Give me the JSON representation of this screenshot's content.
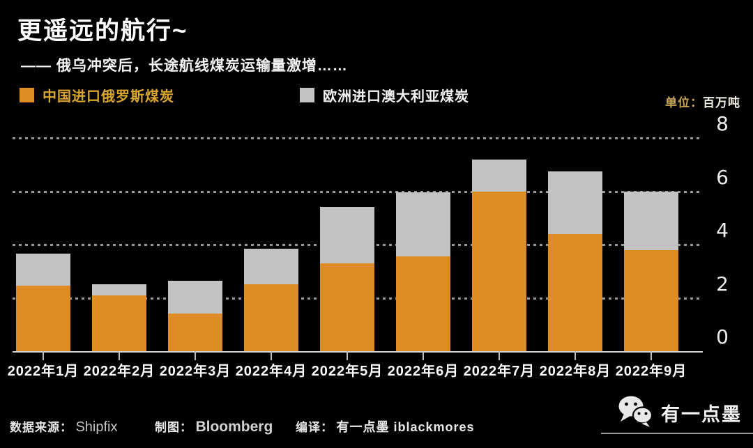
{
  "header": {
    "title": "更遥远的航行~",
    "subtitle": "—— 俄乌冲突后，长途航线煤炭运输量激增……"
  },
  "legend": {
    "items": [
      {
        "label": "中国进口俄罗斯煤炭",
        "swatch_color": "#de8d26",
        "label_color": "#d9a62e"
      },
      {
        "label": "欧洲进口澳大利亚煤炭",
        "swatch_color": "#c3c3c3",
        "label_color": "#f2f2f2"
      }
    ]
  },
  "unit": {
    "prefix": "单位：",
    "value": "百万吨"
  },
  "chart_data": {
    "type": "bar",
    "stacked": true,
    "title": "更遥远的航行~",
    "subtitle": "—— 俄乌冲突后，长途航线煤炭运输量激增……",
    "unit": "百万吨",
    "categories": [
      "2022年1月",
      "2022年2月",
      "2022年3月",
      "2022年4月",
      "2022年5月",
      "2022年6月",
      "2022年7月",
      "2022年8月",
      "2022年9月"
    ],
    "series": [
      {
        "name": "中国进口俄罗斯煤炭",
        "color": "#de8d26",
        "values": [
          2.45,
          2.1,
          1.4,
          2.5,
          3.3,
          3.55,
          6.0,
          4.4,
          3.8
        ]
      },
      {
        "name": "欧洲进口澳大利亚煤炭",
        "color": "#c3c3c3",
        "values": [
          1.2,
          0.4,
          1.25,
          1.35,
          2.1,
          2.4,
          1.2,
          2.35,
          2.2
        ]
      }
    ],
    "ylim": [
      0,
      8
    ],
    "yticks": [
      0,
      2,
      4,
      6,
      8
    ],
    "ytick_side": "right",
    "grid": "horizontal-dotted",
    "legend_position": "top"
  },
  "footer": {
    "source_label": "数据来源：",
    "source_value": "Shipfix",
    "chart_by_label": "制图：",
    "chart_by_value": "Bloomberg",
    "translation_label": "编译：",
    "translation_value": "有一点墨 iblackmores"
  },
  "brand": {
    "name": "有一点墨"
  }
}
